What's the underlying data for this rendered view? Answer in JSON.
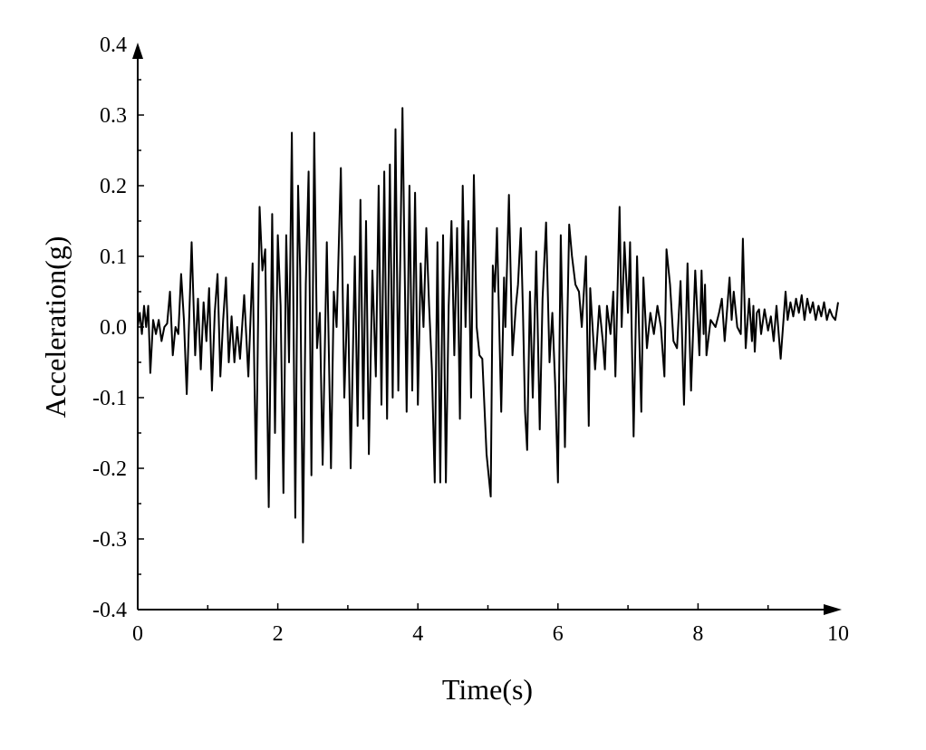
{
  "chart_data": {
    "type": "line",
    "title": "",
    "xlabel": "Time(s)",
    "ylabel": "Acceleration(g)",
    "xlim": [
      0,
      10
    ],
    "ylim": [
      -0.4,
      0.4
    ],
    "xticks": [
      "0",
      "2",
      "4",
      "6",
      "8",
      "10"
    ],
    "yticks": [
      "-0.4",
      "-0.3",
      "-0.2",
      "-0.1",
      "0.0",
      "0.1",
      "0.2",
      "0.3",
      "0.4"
    ],
    "grid": false,
    "line_color": "#000000",
    "series": [
      {
        "x": [
          0.0,
          0.03,
          0.06,
          0.09,
          0.12,
          0.15,
          0.18,
          0.22,
          0.26,
          0.3,
          0.34,
          0.38,
          0.42,
          0.46,
          0.5,
          0.54,
          0.58,
          0.62,
          0.66,
          0.7,
          0.77,
          0.82,
          0.86,
          0.9,
          0.94,
          0.98,
          1.02,
          1.06,
          1.1,
          1.14,
          1.18,
          1.22,
          1.26,
          1.3,
          1.34,
          1.38,
          1.42,
          1.46,
          1.52,
          1.58,
          1.64,
          1.69,
          1.74,
          1.78,
          1.82,
          1.87,
          1.92,
          1.96,
          2.0,
          2.04,
          2.08,
          2.12,
          2.16,
          2.2,
          2.25,
          2.29,
          2.32,
          2.36,
          2.4,
          2.44,
          2.48,
          2.52,
          2.56,
          2.6,
          2.64,
          2.7,
          2.76,
          2.8,
          2.84,
          2.9,
          2.95,
          3.0,
          3.04,
          3.1,
          3.14,
          3.18,
          3.22,
          3.26,
          3.3,
          3.35,
          3.4,
          3.44,
          3.48,
          3.52,
          3.56,
          3.6,
          3.64,
          3.68,
          3.72,
          3.78,
          3.84,
          3.88,
          3.92,
          3.96,
          4.0,
          4.04,
          4.08,
          4.12,
          4.16,
          4.2,
          4.24,
          4.28,
          4.32,
          4.36,
          4.4,
          4.44,
          4.48,
          4.52,
          4.56,
          4.6,
          4.64,
          4.68,
          4.72,
          4.76,
          4.8,
          4.84,
          4.88,
          4.92,
          4.98,
          5.04,
          5.07,
          5.1,
          5.13,
          5.19,
          5.23,
          5.25,
          5.3,
          5.35,
          5.4,
          5.43,
          5.47,
          5.5,
          5.53,
          5.56,
          5.6,
          5.64,
          5.69,
          5.74,
          5.78,
          5.83,
          5.88,
          5.92,
          5.96,
          6.0,
          6.04,
          6.1,
          6.16,
          6.2,
          6.25,
          6.3,
          6.34,
          6.4,
          6.44,
          6.46,
          6.53,
          6.59,
          6.64,
          6.67,
          6.7,
          6.75,
          6.79,
          6.82,
          6.88,
          6.91,
          6.95,
          7.0,
          7.03,
          7.08,
          7.13,
          7.19,
          7.22,
          7.27,
          7.32,
          7.37,
          7.42,
          7.47,
          7.52,
          7.55,
          7.6,
          7.65,
          7.7,
          7.75,
          7.8,
          7.85,
          7.9,
          7.96,
          8.02,
          8.05,
          8.08,
          8.1,
          8.12,
          8.18,
          8.25,
          8.3,
          8.34,
          8.38,
          8.45,
          8.48,
          8.51,
          8.56,
          8.61,
          8.64,
          8.68,
          8.73,
          8.77,
          8.79,
          8.81,
          8.84,
          8.87,
          8.9,
          8.95,
          9.0,
          9.04,
          9.08,
          9.12,
          9.18,
          9.25,
          9.28,
          9.32,
          9.36,
          9.4,
          9.44,
          9.48,
          9.52,
          9.56,
          9.6,
          9.64,
          9.68,
          9.72,
          9.76,
          9.8,
          9.84,
          9.88,
          9.92,
          9.96,
          10.0
        ],
        "y": [
          0.0,
          0.02,
          -0.01,
          0.03,
          0.0,
          0.03,
          -0.065,
          0.01,
          -0.01,
          0.01,
          -0.02,
          0.0,
          0.005,
          0.05,
          -0.04,
          0.0,
          -0.01,
          0.075,
          0.01,
          -0.095,
          0.12,
          -0.04,
          0.04,
          -0.06,
          0.035,
          -0.02,
          0.055,
          -0.09,
          0.02,
          0.075,
          -0.07,
          0.01,
          0.07,
          -0.05,
          0.015,
          -0.05,
          0.0,
          -0.045,
          0.045,
          -0.07,
          0.09,
          -0.215,
          0.17,
          0.08,
          0.11,
          -0.255,
          0.16,
          -0.15,
          0.13,
          0.03,
          -0.235,
          0.13,
          -0.05,
          0.275,
          -0.27,
          0.2,
          0.08,
          -0.305,
          0.06,
          0.22,
          -0.21,
          0.275,
          -0.03,
          0.02,
          -0.195,
          0.12,
          -0.2,
          0.05,
          0.0,
          0.225,
          -0.1,
          0.06,
          -0.2,
          0.1,
          -0.14,
          0.18,
          -0.13,
          0.15,
          -0.18,
          0.08,
          -0.07,
          0.2,
          -0.11,
          0.22,
          -0.13,
          0.23,
          -0.1,
          0.28,
          -0.09,
          0.31,
          -0.12,
          0.2,
          -0.09,
          0.19,
          -0.11,
          0.09,
          0.0,
          0.14,
          0.03,
          -0.06,
          -0.22,
          0.12,
          -0.22,
          0.13,
          -0.22,
          0.03,
          0.15,
          -0.04,
          0.14,
          -0.13,
          0.2,
          0.0,
          0.15,
          -0.1,
          0.215,
          0.0,
          -0.04,
          -0.045,
          -0.18,
          -0.24,
          0.087,
          0.05,
          0.14,
          -0.12,
          0.07,
          0.0,
          0.187,
          -0.04,
          0.03,
          0.06,
          0.14,
          0.02,
          -0.12,
          -0.174,
          0.05,
          -0.1,
          0.107,
          -0.145,
          0.04,
          0.148,
          -0.05,
          0.02,
          -0.08,
          -0.22,
          0.13,
          -0.17,
          0.145,
          0.1,
          0.06,
          0.05,
          0.0,
          0.1,
          -0.14,
          0.055,
          -0.06,
          0.03,
          -0.02,
          -0.06,
          0.03,
          -0.01,
          0.05,
          -0.07,
          0.17,
          0.0,
          0.12,
          0.02,
          0.12,
          -0.155,
          0.1,
          -0.12,
          0.07,
          -0.03,
          0.02,
          -0.01,
          0.03,
          0.0,
          -0.07,
          0.11,
          0.06,
          -0.02,
          -0.03,
          0.065,
          -0.11,
          0.09,
          -0.09,
          0.08,
          -0.04,
          0.08,
          -0.01,
          0.06,
          -0.04,
          0.01,
          0.0,
          0.02,
          0.04,
          -0.02,
          0.07,
          0.01,
          0.05,
          0.0,
          -0.01,
          0.125,
          -0.03,
          0.04,
          -0.02,
          0.03,
          -0.035,
          0.02,
          0.025,
          -0.01,
          0.025,
          -0.005,
          0.015,
          -0.02,
          0.03,
          -0.045,
          0.05,
          0.01,
          0.035,
          0.015,
          0.04,
          0.02,
          0.045,
          0.01,
          0.04,
          0.02,
          0.035,
          0.01,
          0.03,
          0.015,
          0.035,
          0.01,
          0.025,
          0.015,
          0.01,
          0.035
        ]
      }
    ]
  }
}
